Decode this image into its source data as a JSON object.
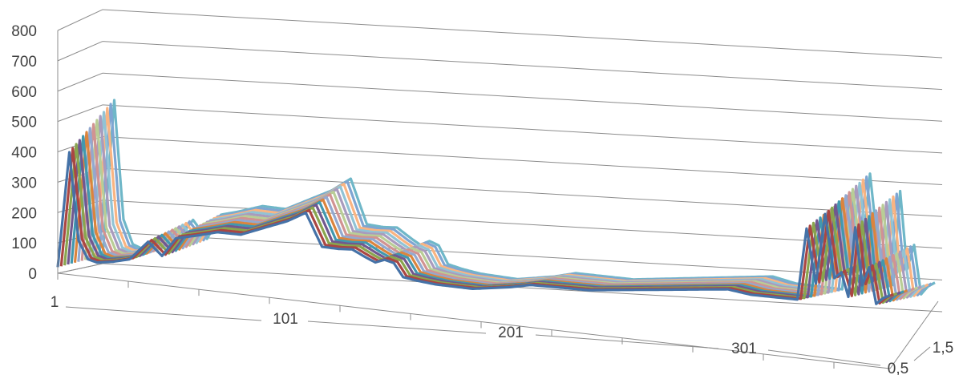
{
  "chart_data": {
    "type": "line",
    "subtype": "3d-line-ribbons",
    "title": "",
    "xlabel": "",
    "ylabel": "",
    "ylim": [
      0,
      800
    ],
    "yticks": [
      "0",
      "100",
      "200",
      "300",
      "400",
      "500",
      "600",
      "700",
      "800"
    ],
    "xticks": [
      "1",
      "101",
      "201",
      "301"
    ],
    "depth_ticks": [
      "0,5",
      "1,5"
    ],
    "grid": true,
    "legend": "none",
    "x_count": 360,
    "peak_profile": {
      "x": [
        1,
        6,
        10,
        14,
        18,
        25,
        32,
        40,
        46,
        52,
        60,
        70,
        80,
        90,
        100,
        108,
        115,
        122,
        128,
        134,
        138,
        142,
        146,
        150,
        156,
        164,
        172,
        180,
        188,
        196,
        205,
        230,
        260,
        290,
        300,
        320,
        324,
        328,
        332,
        336,
        339,
        342,
        345,
        348,
        351,
        354,
        357,
        360
      ],
      "y": [
        20,
        400,
        110,
        50,
        40,
        45,
        55,
        115,
        70,
        130,
        140,
        155,
        150,
        175,
        200,
        230,
        120,
        115,
        115,
        90,
        75,
        85,
        75,
        30,
        20,
        10,
        5,
        0,
        5,
        10,
        20,
        10,
        20,
        30,
        15,
        5,
        240,
        60,
        290,
        80,
        100,
        20,
        250,
        60,
        120,
        0,
        20,
        30
      ]
    },
    "series_count": 14,
    "series_colors": [
      "#4572a7",
      "#aa4643",
      "#89a54e",
      "#71588f",
      "#4198af",
      "#db843d",
      "#93a9cf",
      "#d19392",
      "#b9cd96",
      "#a99bbd",
      "#91c3d5",
      "#f9b482",
      "#7fa5d2",
      "#6fb7c8"
    ]
  }
}
